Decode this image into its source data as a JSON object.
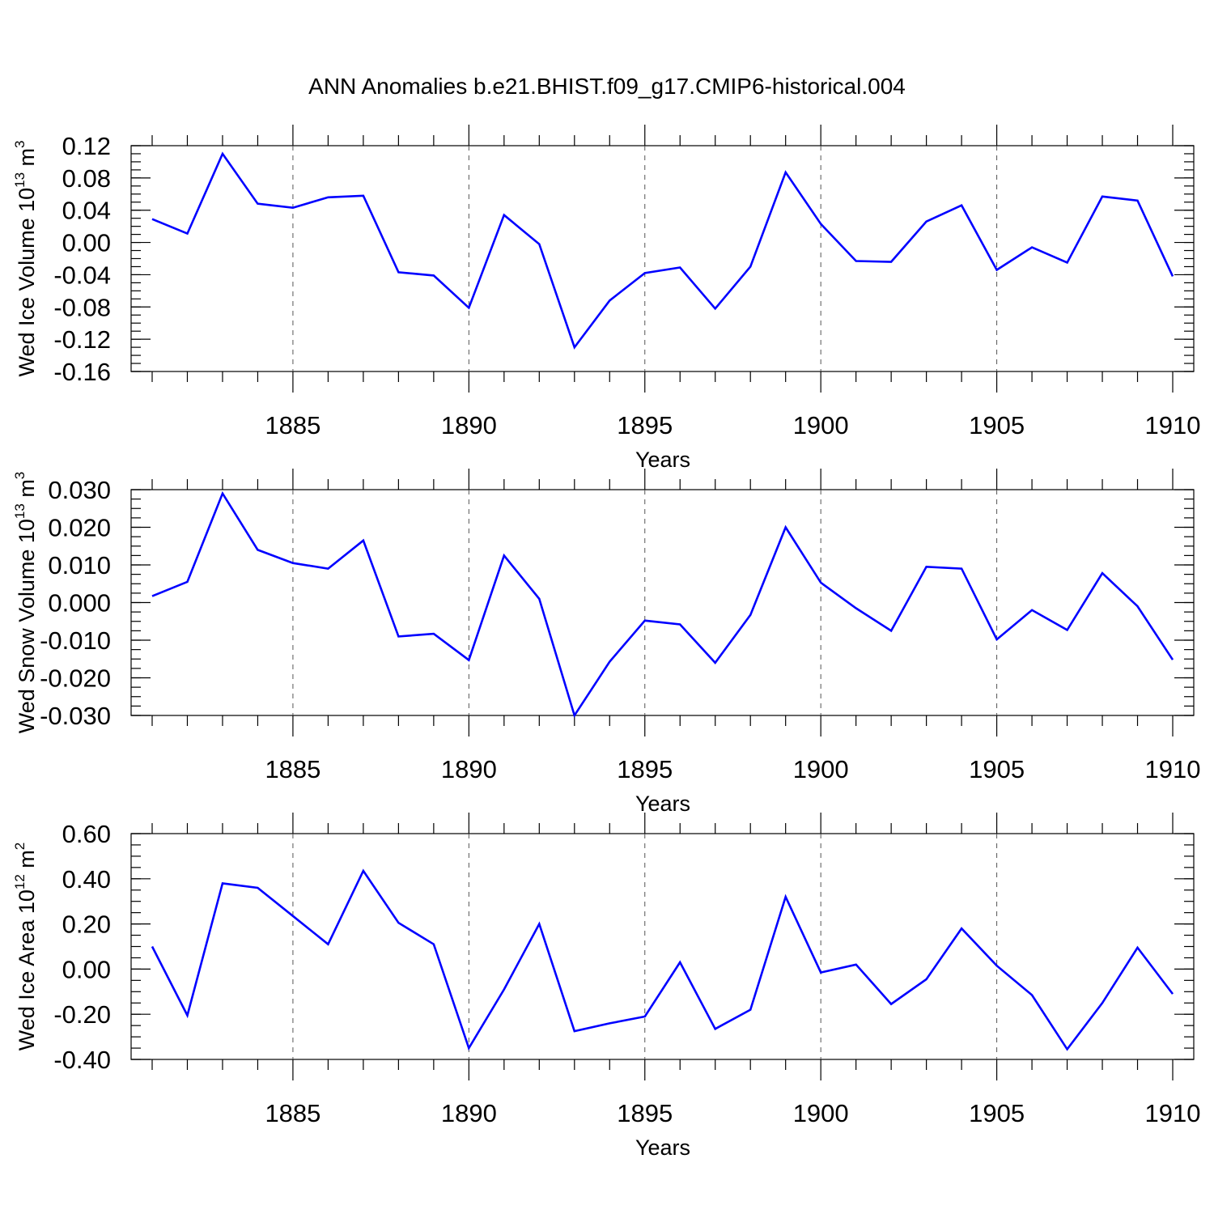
{
  "title": "ANN Anomalies b.e21.BHIST.f09_g17.CMIP6-historical.004",
  "chart_data": [
    {
      "type": "line",
      "ylabel": "Wed Ice Volume 10",
      "ylabel_exp": "13",
      "ylabel_unit": "m",
      "ylabel_unit_exp": "3",
      "xlabel": "Years",
      "xlim": [
        1881,
        1910
      ],
      "ylim": [
        -0.16,
        0.12
      ],
      "y_ticks": [
        0.12,
        0.08,
        0.04,
        0.0,
        -0.04,
        -0.08,
        -0.12,
        -0.16
      ],
      "y_tick_labels": [
        "0.12",
        "0.08",
        "0.04",
        "0.00",
        "-0.04",
        "-0.08",
        "-0.12",
        "-0.16"
      ],
      "y_minor_step": 0.01,
      "x_ticks": [
        1885,
        1890,
        1895,
        1900,
        1905,
        1910
      ],
      "x_tick_labels": [
        "1885",
        "1890",
        "1895",
        "1900",
        "1905",
        "1910"
      ],
      "grid": "x-dashed",
      "color": "#0000ff",
      "x": [
        1881,
        1882,
        1883,
        1884,
        1885,
        1886,
        1887,
        1888,
        1889,
        1890,
        1891,
        1892,
        1893,
        1894,
        1895,
        1896,
        1897,
        1898,
        1899,
        1900,
        1901,
        1902,
        1903,
        1904,
        1905,
        1906,
        1907,
        1908,
        1909,
        1910
      ],
      "values": [
        0.029,
        0.011,
        0.11,
        0.048,
        0.043,
        0.056,
        0.058,
        -0.037,
        -0.041,
        -0.081,
        0.034,
        -0.002,
        -0.13,
        -0.072,
        -0.038,
        -0.031,
        -0.082,
        -0.03,
        0.087,
        0.023,
        -0.023,
        -0.024,
        0.026,
        0.046,
        -0.034,
        -0.006,
        -0.025,
        0.057,
        0.052,
        -0.042
      ]
    },
    {
      "type": "line",
      "ylabel": "Wed Snow Volume 10",
      "ylabel_exp": "13",
      "ylabel_unit": "m",
      "ylabel_unit_exp": "3",
      "xlabel": "Years",
      "xlim": [
        1881,
        1910
      ],
      "ylim": [
        -0.03,
        0.03
      ],
      "y_ticks": [
        0.03,
        0.02,
        0.01,
        0.0,
        -0.01,
        -0.02,
        -0.03
      ],
      "y_tick_labels": [
        "0.030",
        "0.020",
        "0.010",
        "0.000",
        "-0.010",
        "-0.020",
        "-0.030"
      ],
      "y_minor_step": 0.0025,
      "x_ticks": [
        1885,
        1890,
        1895,
        1900,
        1905,
        1910
      ],
      "x_tick_labels": [
        "1885",
        "1890",
        "1895",
        "1900",
        "1905",
        "1910"
      ],
      "grid": "x-dashed",
      "color": "#0000ff",
      "x": [
        1881,
        1882,
        1883,
        1884,
        1885,
        1886,
        1887,
        1888,
        1889,
        1890,
        1891,
        1892,
        1893,
        1894,
        1895,
        1896,
        1897,
        1898,
        1899,
        1900,
        1901,
        1902,
        1903,
        1904,
        1905,
        1906,
        1907,
        1908,
        1909,
        1910
      ],
      "values": [
        0.0017,
        0.0055,
        0.029,
        0.014,
        0.0105,
        0.009,
        0.0165,
        -0.009,
        -0.0083,
        -0.0153,
        0.0125,
        0.001,
        -0.03,
        -0.0157,
        -0.0048,
        -0.0058,
        -0.016,
        -0.0033,
        0.02,
        0.0053,
        -0.0015,
        -0.0075,
        0.0095,
        0.009,
        -0.0098,
        -0.002,
        -0.0073,
        0.0078,
        -0.001,
        -0.0152
      ]
    },
    {
      "type": "line",
      "ylabel": "Wed Ice Area 10",
      "ylabel_exp": "12",
      "ylabel_unit": "m",
      "ylabel_unit_exp": "2",
      "xlabel": "Years",
      "xlim": [
        1881,
        1910
      ],
      "ylim": [
        -0.4,
        0.6
      ],
      "y_ticks": [
        0.6,
        0.4,
        0.2,
        0.0,
        -0.2,
        -0.4
      ],
      "y_tick_labels": [
        "0.60",
        "0.40",
        "0.20",
        "0.00",
        "-0.20",
        "-0.40"
      ],
      "y_minor_step": 0.05,
      "x_ticks": [
        1885,
        1890,
        1895,
        1900,
        1905,
        1910
      ],
      "x_tick_labels": [
        "1885",
        "1890",
        "1895",
        "1900",
        "1905",
        "1910"
      ],
      "grid": "x-dashed",
      "color": "#0000ff",
      "x": [
        1881,
        1882,
        1883,
        1884,
        1885,
        1886,
        1887,
        1888,
        1889,
        1890,
        1891,
        1892,
        1893,
        1894,
        1895,
        1896,
        1897,
        1898,
        1899,
        1900,
        1901,
        1902,
        1903,
        1904,
        1905,
        1906,
        1907,
        1908,
        1909,
        1910
      ],
      "values": [
        0.1,
        -0.205,
        0.38,
        0.36,
        0.235,
        0.11,
        0.435,
        0.205,
        0.11,
        -0.35,
        -0.09,
        0.2,
        -0.275,
        -0.24,
        -0.21,
        0.03,
        -0.265,
        -0.18,
        0.32,
        -0.015,
        0.02,
        -0.155,
        -0.045,
        0.18,
        0.015,
        -0.115,
        -0.355,
        -0.15,
        0.095,
        -0.11
      ]
    }
  ]
}
